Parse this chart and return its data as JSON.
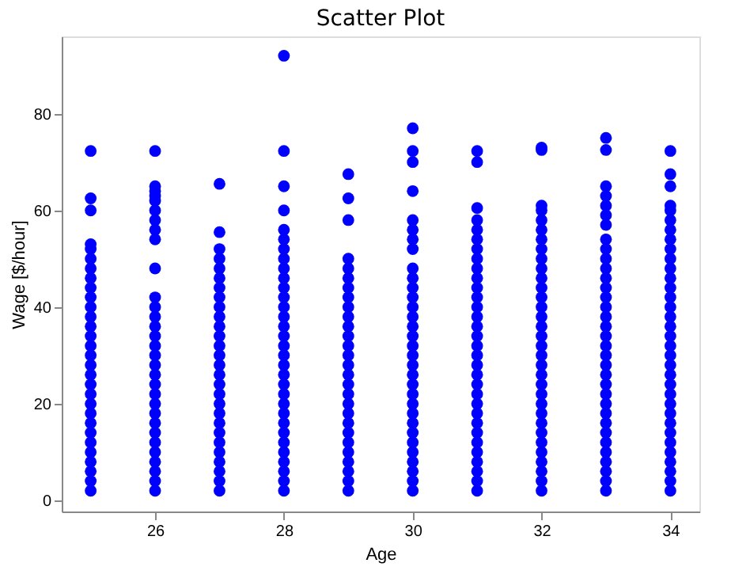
{
  "chart_data": {
    "type": "scatter",
    "title": "Scatter Plot",
    "xlabel": "Age",
    "ylabel": "Wage [$/hour]",
    "xlim": [
      24.55,
      34.45
    ],
    "ylim": [
      -2.3,
      96
    ],
    "xticks": [
      26,
      28,
      30,
      32,
      34
    ],
    "yticks": [
      0,
      20,
      40,
      60,
      80
    ],
    "grid": false,
    "marker": "circle",
    "series": [
      {
        "color": "#0000ff",
        "x": [
          25,
          25,
          25,
          25,
          25,
          25,
          25,
          25,
          25,
          25,
          25,
          25,
          25,
          25,
          25,
          25,
          25,
          25,
          25,
          25,
          25,
          25,
          25,
          25,
          25,
          25,
          25,
          25,
          25,
          25,
          26,
          26,
          26,
          26,
          26,
          26,
          26,
          26,
          26,
          26,
          26,
          26,
          26,
          26,
          26,
          26,
          26,
          26,
          26,
          26,
          26,
          26,
          26,
          26,
          26,
          26,
          26,
          26,
          26,
          26,
          26,
          27,
          27,
          27,
          27,
          27,
          27,
          27,
          27,
          27,
          27,
          27,
          27,
          27,
          27,
          27,
          27,
          27,
          27,
          27,
          27,
          27,
          27,
          27,
          27,
          27,
          27,
          27,
          27,
          28,
          28,
          28,
          28,
          28,
          28,
          28,
          28,
          28,
          28,
          28,
          28,
          28,
          28,
          28,
          28,
          28,
          28,
          28,
          28,
          28,
          28,
          28,
          28,
          28,
          28,
          28,
          28,
          28,
          28,
          28,
          28,
          29,
          29,
          29,
          29,
          29,
          29,
          29,
          29,
          29,
          29,
          29,
          29,
          29,
          29,
          29,
          29,
          29,
          29,
          29,
          29,
          29,
          29,
          29,
          29,
          29,
          29,
          29,
          29,
          30,
          30,
          30,
          30,
          30,
          30,
          30,
          30,
          30,
          30,
          30,
          30,
          30,
          30,
          30,
          30,
          30,
          30,
          30,
          30,
          30,
          30,
          30,
          30,
          30,
          30,
          30,
          30,
          30,
          30,
          30,
          30,
          31,
          31,
          31,
          31,
          31,
          31,
          31,
          31,
          31,
          31,
          31,
          31,
          31,
          31,
          31,
          31,
          31,
          31,
          31,
          31,
          31,
          31,
          31,
          31,
          31,
          31,
          31,
          31,
          31,
          31,
          31,
          31,
          32,
          32,
          32,
          32,
          32,
          32,
          32,
          32,
          32,
          32,
          32,
          32,
          32,
          32,
          32,
          32,
          32,
          32,
          32,
          32,
          32,
          32,
          32,
          32,
          32,
          32,
          32,
          32,
          32,
          32,
          32,
          32,
          32,
          33,
          33,
          33,
          33,
          33,
          33,
          33,
          33,
          33,
          33,
          33,
          33,
          33,
          33,
          33,
          33,
          33,
          33,
          33,
          33,
          33,
          33,
          33,
          33,
          33,
          33,
          33,
          33,
          33,
          33,
          33,
          33,
          33,
          33,
          34,
          34,
          34,
          34,
          34,
          34,
          34,
          34,
          34,
          34,
          34,
          34,
          34,
          34,
          34,
          34,
          34,
          34,
          34,
          34,
          34,
          34,
          34,
          34,
          34,
          34,
          34,
          34,
          34,
          34,
          34,
          34,
          34,
          34
        ],
        "values": [
          2,
          4,
          6,
          8,
          10,
          12,
          14,
          16,
          18,
          20,
          22,
          24,
          26,
          28,
          30,
          32,
          34,
          36,
          38,
          40,
          42,
          44,
          46,
          48,
          50,
          52,
          53,
          60,
          62.5,
          72.3,
          2,
          4,
          6,
          8,
          10,
          12,
          14,
          16,
          18,
          20,
          22,
          24,
          26,
          28,
          30,
          32,
          34,
          36,
          38,
          40,
          42,
          48,
          54,
          56,
          58,
          60,
          62,
          63,
          64,
          65,
          72.3,
          2,
          4,
          6,
          8,
          10,
          12,
          14,
          16,
          18,
          20,
          22,
          24,
          26,
          28,
          30,
          32,
          34,
          36,
          38,
          40,
          42,
          44,
          46,
          48,
          50,
          52,
          55.5,
          65.5,
          2,
          4,
          6,
          8,
          10,
          12,
          14,
          16,
          18,
          20,
          22,
          24,
          26,
          28,
          30,
          32,
          34,
          36,
          38,
          40,
          42,
          44,
          46,
          48,
          50,
          52,
          54,
          56,
          60,
          65,
          72.3,
          92,
          2,
          4,
          6,
          8,
          10,
          12,
          14,
          16,
          18,
          20,
          22,
          24,
          26,
          28,
          30,
          32,
          34,
          36,
          38,
          40,
          42,
          44,
          46,
          48,
          50,
          58,
          62.5,
          67.5,
          2,
          4,
          6,
          8,
          10,
          12,
          14,
          16,
          18,
          20,
          22,
          24,
          26,
          28,
          30,
          32,
          34,
          36,
          38,
          40,
          42,
          44,
          46,
          48,
          52,
          54,
          56,
          58,
          64,
          70,
          72.3,
          77,
          2,
          4,
          6,
          8,
          10,
          12,
          14,
          16,
          18,
          20,
          22,
          24,
          26,
          28,
          30,
          32,
          34,
          36,
          38,
          40,
          42,
          44,
          46,
          48,
          50,
          52,
          54,
          56,
          58,
          60.5,
          70,
          72.3,
          2,
          4,
          6,
          8,
          10,
          12,
          14,
          16,
          18,
          20,
          22,
          24,
          26,
          28,
          30,
          32,
          34,
          36,
          38,
          40,
          42,
          44,
          46,
          48,
          50,
          52,
          54,
          56,
          58,
          60,
          61,
          72.5,
          73,
          2,
          4,
          6,
          8,
          10,
          12,
          14,
          16,
          18,
          20,
          22,
          24,
          26,
          28,
          30,
          32,
          34,
          36,
          38,
          40,
          42,
          44,
          46,
          48,
          50,
          52,
          54,
          57,
          59,
          61,
          63,
          65,
          72.5,
          75,
          2,
          4,
          6,
          8,
          10,
          12,
          14,
          16,
          18,
          20,
          22,
          24,
          26,
          28,
          30,
          32,
          34,
          36,
          38,
          40,
          42,
          44,
          46,
          48,
          50,
          52,
          54,
          56,
          58,
          60,
          61,
          65,
          67.5,
          72.3
        ]
      }
    ]
  }
}
